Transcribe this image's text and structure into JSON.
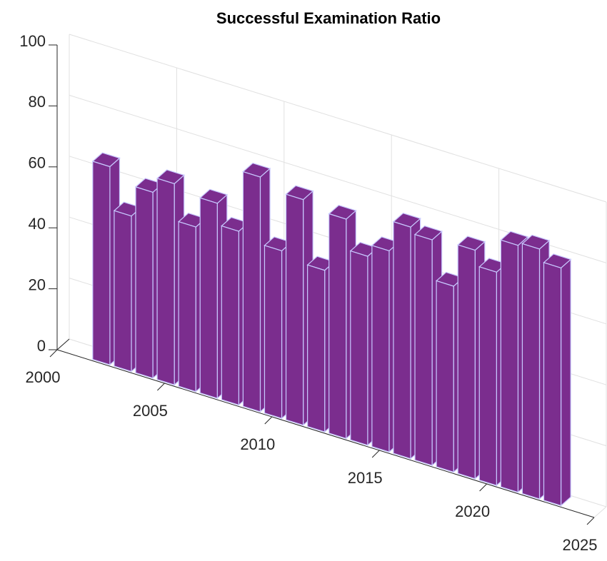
{
  "chart_data": {
    "type": "bar3",
    "title": "Successful Examination Ratio",
    "x": [
      2002,
      2003,
      2004,
      2005,
      2006,
      2007,
      2008,
      2009,
      2010,
      2011,
      2012,
      2013,
      2014,
      2015,
      2016,
      2017,
      2018,
      2019,
      2020,
      2021,
      2022,
      2023
    ],
    "values": [
      65,
      51,
      61,
      66,
      54,
      64,
      57,
      77,
      55,
      74,
      53,
      72,
      62,
      66,
      76,
      74,
      61,
      75,
      70,
      81,
      82,
      78
    ],
    "color": "#7b2d8e",
    "edge_color": "#c8c8ff",
    "xlim": [
      2000,
      2025
    ],
    "xticks": [
      2000,
      2005,
      2010,
      2015,
      2020,
      2025
    ],
    "ylim": [
      0,
      100
    ],
    "yticks": [
      0,
      20,
      40,
      60,
      80,
      100
    ],
    "grid": true
  }
}
